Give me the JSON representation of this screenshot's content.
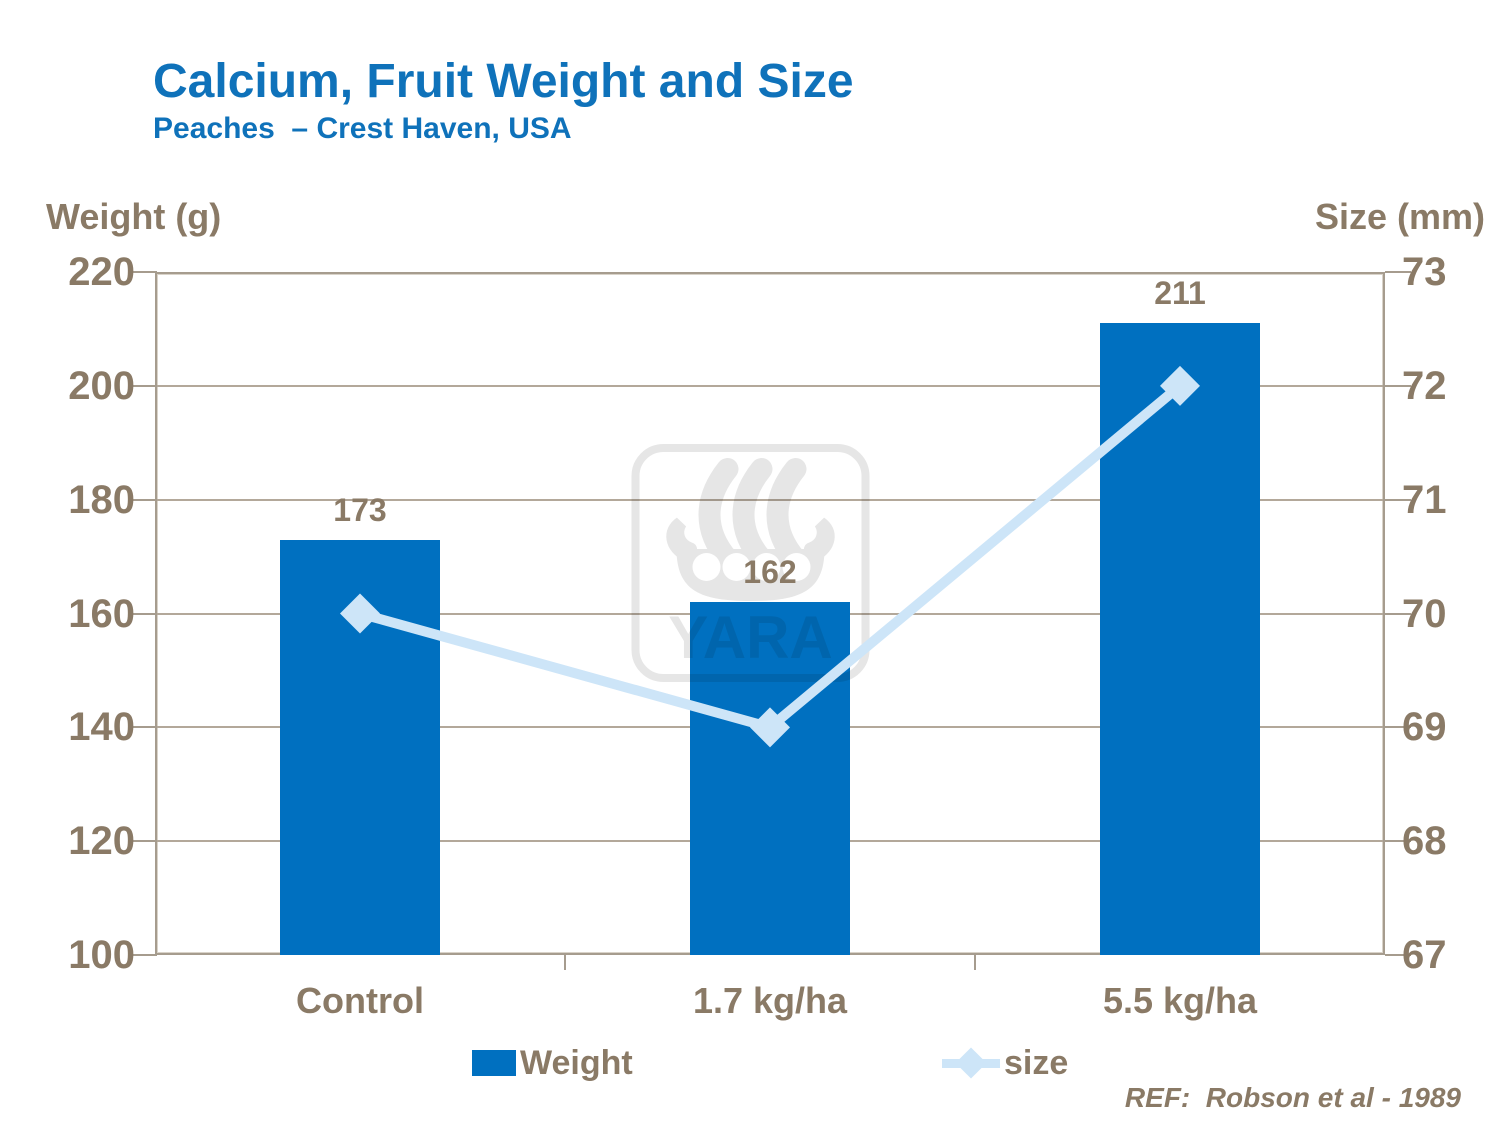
{
  "header": {
    "title": "Calcium, Fruit Weight and Size",
    "subtitle": "Peaches  – Crest Haven, USA"
  },
  "footer": {
    "ref_text": "REF:  Robson et al - 1989"
  },
  "watermark": {
    "text": "YARA",
    "icon": "yara-viking-ship-logo",
    "color": "#e6e6e6"
  },
  "colors": {
    "title_blue": "#0f72ba",
    "bar_blue": "#0070c0",
    "line_light_blue": "#cde5f8",
    "text_brown": "#8a7a66",
    "grid": "#b3a89a",
    "frame": "#a69c8e"
  },
  "chart_data": {
    "type": "bar",
    "combo": "bar + line, dual y-axis",
    "title": "Calcium, Fruit Weight and Size",
    "subtitle": "Peaches  – Crest Haven, USA",
    "categories": [
      "Control",
      "1.7 kg/ha",
      "5.5 kg/ha"
    ],
    "series": [
      {
        "name": "Weight",
        "type": "bar",
        "y_axis": "left",
        "values": [
          173,
          162,
          211
        ],
        "color": "#0070c0",
        "data_labels": [
          173,
          162,
          211
        ]
      },
      {
        "name": "size",
        "type": "line",
        "y_axis": "right",
        "values": [
          70,
          69,
          72
        ],
        "color": "#cde5f8",
        "marker": "diamond"
      }
    ],
    "left_axis": {
      "label": "Weight (g)",
      "ticks": [
        220,
        200,
        180,
        160,
        140,
        120,
        100
      ],
      "lim": [
        100,
        220
      ]
    },
    "right_axis": {
      "label": "Size (mm)",
      "ticks": [
        73,
        72,
        71,
        70,
        69,
        68,
        67
      ],
      "lim": [
        67,
        73
      ]
    },
    "grid": true,
    "legend_position": "bottom",
    "annotation": "REF:  Robson et al - 1989"
  }
}
